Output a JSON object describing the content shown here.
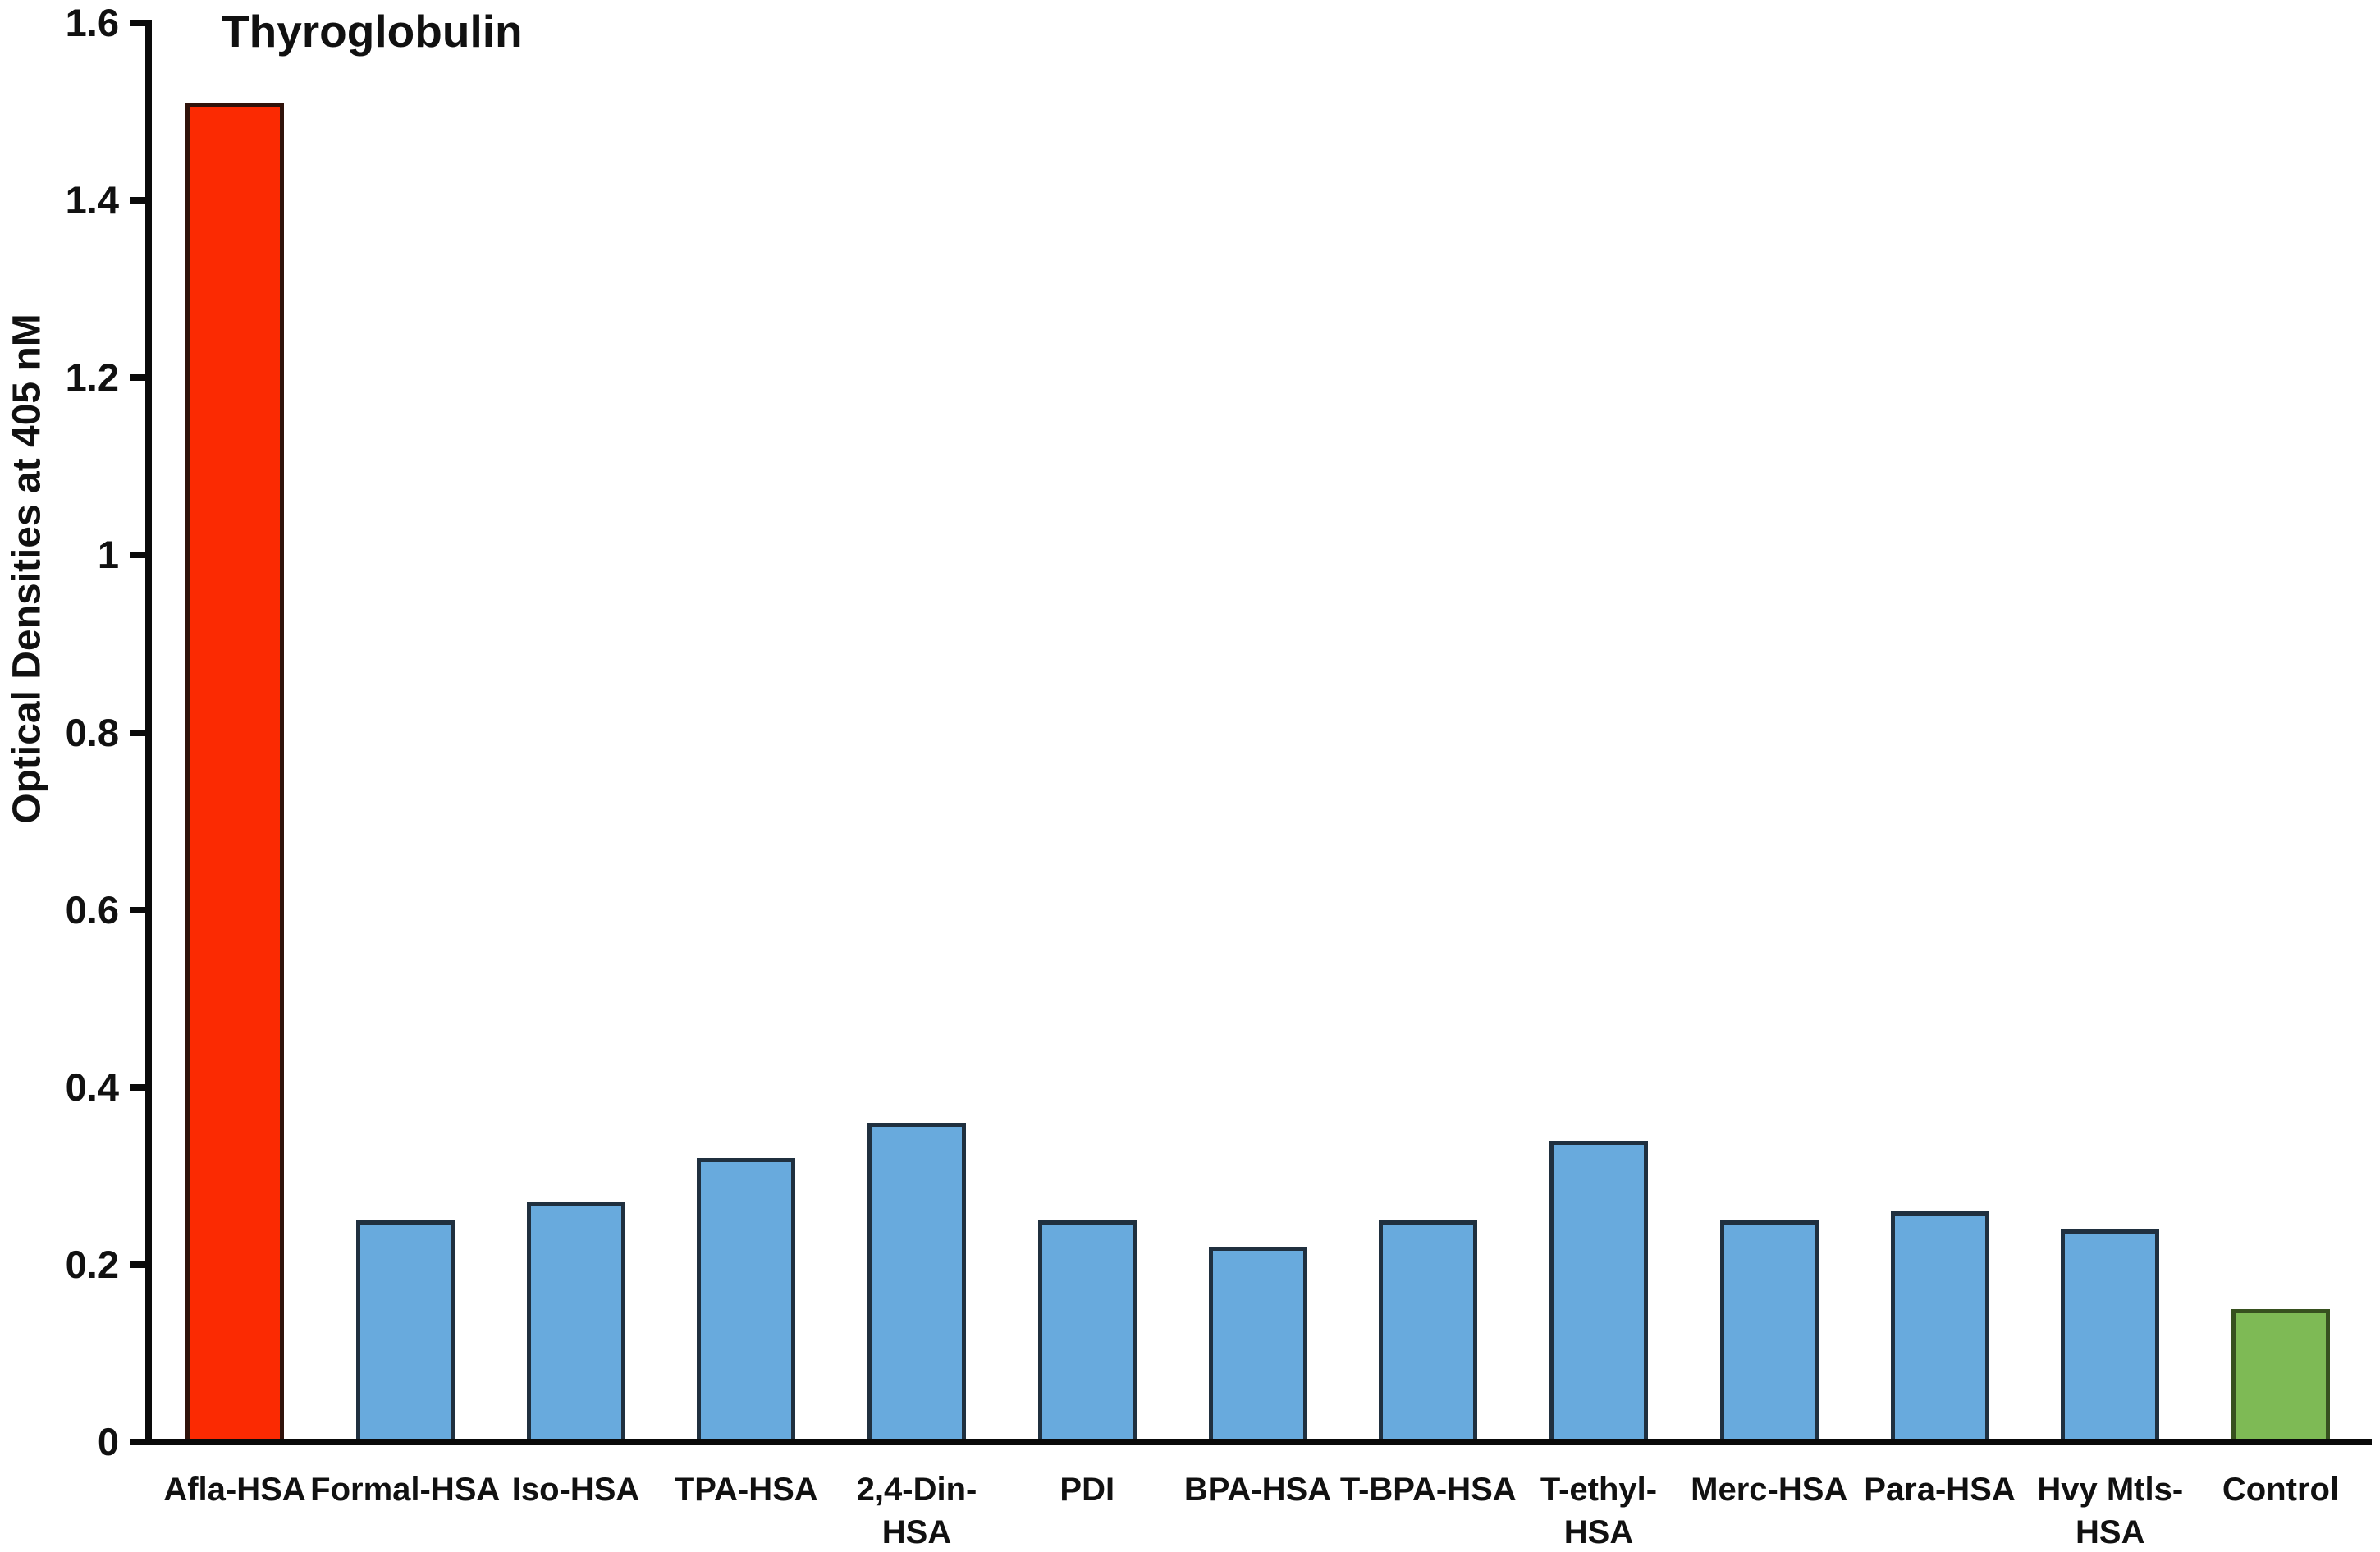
{
  "chart_data": {
    "type": "bar",
    "title": "Thyroglobulin",
    "xlabel": "",
    "ylabel": "Optical Densities at 405 nM",
    "ylim": [
      0,
      1.6
    ],
    "grid": false,
    "legend_position": "none",
    "axis_color": "#0a0a0a",
    "background_color": "#ffffff",
    "yticks": [
      {
        "value": 0,
        "label": "0"
      },
      {
        "value": 0.2,
        "label": "0.2"
      },
      {
        "value": 0.4,
        "label": "0.4"
      },
      {
        "value": 0.6,
        "label": "0.6"
      },
      {
        "value": 0.8,
        "label": "0.8"
      },
      {
        "value": 1,
        "label": "1"
      },
      {
        "value": 1.2,
        "label": "1.2"
      },
      {
        "value": 1.4,
        "label": "1.4"
      },
      {
        "value": 1.6,
        "label": "1.6"
      }
    ],
    "categories": [
      "Afla-HSA",
      "Formal-HSA",
      "Iso-HSA",
      "TPA-HSA",
      "2,4-Din-HSA",
      "PDI",
      "BPA-HSA",
      "T-BPA-HSA",
      "T-ethyl-HSA",
      "Merc-HSA",
      "Para-HSA",
      "Hvy Mtls-HSA",
      "Control"
    ],
    "values": [
      1.51,
      0.25,
      0.27,
      0.32,
      0.36,
      0.25,
      0.22,
      0.25,
      0.34,
      0.25,
      0.26,
      0.24,
      0.15
    ],
    "bars": [
      {
        "label_lines": [
          "Afla-HSA"
        ],
        "value": 1.51,
        "fill": "#fb2a02",
        "border": "#30120a"
      },
      {
        "label_lines": [
          "Formal-HSA"
        ],
        "value": 0.25,
        "fill": "#68aadd",
        "border": "#20303f"
      },
      {
        "label_lines": [
          "Iso-HSA"
        ],
        "value": 0.27,
        "fill": "#68aadd",
        "border": "#20303f"
      },
      {
        "label_lines": [
          "TPA-HSA"
        ],
        "value": 0.32,
        "fill": "#68aadd",
        "border": "#20303f"
      },
      {
        "label_lines": [
          "2,4-Din-",
          "HSA"
        ],
        "value": 0.36,
        "fill": "#68aadd",
        "border": "#20303f"
      },
      {
        "label_lines": [
          "PDI"
        ],
        "value": 0.25,
        "fill": "#68aadd",
        "border": "#20303f"
      },
      {
        "label_lines": [
          "BPA-HSA"
        ],
        "value": 0.22,
        "fill": "#68aadd",
        "border": "#20303f"
      },
      {
        "label_lines": [
          "T-BPA-HSA"
        ],
        "value": 0.25,
        "fill": "#68aadd",
        "border": "#20303f"
      },
      {
        "label_lines": [
          "T-ethyl-",
          "HSA"
        ],
        "value": 0.34,
        "fill": "#68aadd",
        "border": "#20303f"
      },
      {
        "label_lines": [
          "Merc-HSA"
        ],
        "value": 0.25,
        "fill": "#68aadd",
        "border": "#20303f"
      },
      {
        "label_lines": [
          "Para-HSA"
        ],
        "value": 0.26,
        "fill": "#68aadd",
        "border": "#20303f"
      },
      {
        "label_lines": [
          "Hvy Mtls-",
          "HSA"
        ],
        "value": 0.24,
        "fill": "#68aadd",
        "border": "#20303f"
      },
      {
        "label_lines": [
          "Control"
        ],
        "value": 0.15,
        "fill": "#7eba55",
        "border": "#37511f"
      }
    ]
  }
}
